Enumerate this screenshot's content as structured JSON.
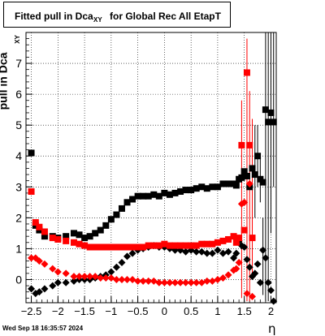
{
  "title": {
    "main": "Fitted pull in Dca",
    "subscript": "XY",
    "rest": "for Global Rec All EtapT"
  },
  "timestamp": "Wed Sep 18 16:35:57 2024",
  "axes": {
    "ylabel_main": "pull in Dca",
    "ylabel_sub": "XY",
    "xlabel": "η"
  },
  "colors": {
    "black": "#000000",
    "red": "#ff0000"
  },
  "chart_data": {
    "type": "scatter",
    "xlim": [
      -2.6,
      2.1
    ],
    "ylim": [
      -0.75,
      8.0
    ],
    "grid": true,
    "x_ticks": [
      -2.5,
      -2,
      -1.5,
      -1,
      -0.5,
      0,
      0.5,
      1,
      1.5,
      2
    ],
    "x_tick_labels": [
      "−2.5",
      "−2",
      "−1.5",
      "−1",
      "−0.5",
      "0",
      "0.5",
      "1",
      "1.5",
      "2"
    ],
    "y_ticks": [
      0,
      1,
      2,
      3,
      4,
      5,
      6,
      7
    ],
    "y_tick_labels": [
      "0",
      "1",
      "2",
      "3",
      "4",
      "5",
      "6",
      "7"
    ],
    "series": [
      {
        "marker": "square",
        "color": "#000000",
        "x": [
          -2.5,
          -2.42,
          -2.35,
          -2.25,
          -2.1,
          -2.0,
          -1.85,
          -1.7,
          -1.6,
          -1.5,
          -1.4,
          -1.3,
          -1.2,
          -1.1,
          -1.0,
          -0.9,
          -0.8,
          -0.7,
          -0.6,
          -0.5,
          -0.4,
          -0.3,
          -0.2,
          -0.1,
          0.0,
          0.1,
          0.2,
          0.3,
          0.4,
          0.5,
          0.6,
          0.7,
          0.8,
          0.9,
          1.0,
          1.1,
          1.2,
          1.3,
          1.35,
          1.4,
          1.45,
          1.5,
          1.55,
          1.6,
          1.65,
          1.7,
          1.75,
          1.8,
          1.85,
          1.9,
          1.95,
          2.0,
          2.05
        ],
        "y": [
          4.1,
          1.75,
          1.6,
          1.4,
          1.4,
          1.35,
          1.4,
          1.5,
          1.45,
          1.35,
          1.4,
          1.5,
          1.6,
          1.75,
          1.95,
          2.1,
          2.3,
          2.5,
          2.6,
          2.7,
          2.7,
          2.7,
          2.75,
          2.7,
          2.8,
          2.75,
          2.8,
          2.85,
          2.9,
          2.9,
          2.95,
          3.0,
          2.95,
          3.0,
          3.0,
          3.1,
          3.1,
          3.1,
          3.05,
          3.25,
          3.3,
          3.5,
          3.35,
          3.0,
          3.6,
          3.4,
          4.0,
          3.25,
          3.15,
          5.5,
          5.1,
          5.4,
          5.1
        ]
      },
      {
        "marker": "diamond",
        "color": "#000000",
        "x": [
          -2.5,
          -2.42,
          -2.35,
          -2.25,
          -2.1,
          -2.0,
          -1.85,
          -1.7,
          -1.6,
          -1.5,
          -1.4,
          -1.3,
          -1.2,
          -1.1,
          -1.0,
          -0.9,
          -0.8,
          -0.7,
          -0.6,
          -0.5,
          -0.4,
          -0.3,
          -0.2,
          -0.1,
          0.0,
          0.1,
          0.2,
          0.3,
          0.4,
          0.5,
          0.6,
          0.7,
          0.8,
          0.9,
          1.0,
          1.1,
          1.2,
          1.3,
          1.35,
          1.4,
          1.45,
          1.5,
          1.55,
          1.6,
          1.65,
          1.7,
          1.75,
          1.8,
          1.85,
          1.9,
          1.95,
          2.0,
          2.05
        ],
        "y": [
          -0.3,
          -0.45,
          -0.4,
          -0.3,
          -0.2,
          -0.1,
          -0.1,
          -0.05,
          0.0,
          0.0,
          0.0,
          0.05,
          0.1,
          0.15,
          0.25,
          0.4,
          0.55,
          0.75,
          0.85,
          0.95,
          1.0,
          1.05,
          1.1,
          1.05,
          1.05,
          1.0,
          0.95,
          0.95,
          0.9,
          0.95,
          0.9,
          0.9,
          0.85,
          0.85,
          0.95,
          0.85,
          0.9,
          0.7,
          0.85,
          1.25,
          1.1,
          1.05,
          0.65,
          0.4,
          0.1,
          0.2,
          0.5,
          -0.1,
          0.95,
          0.7,
          -0.1,
          -0.35,
          -0.7
        ]
      },
      {
        "marker": "square",
        "color": "#ff0000",
        "x": [
          -2.5,
          -2.42,
          -2.35,
          -2.25,
          -2.1,
          -2.0,
          -1.85,
          -1.7,
          -1.6,
          -1.5,
          -1.4,
          -1.3,
          -1.2,
          -1.1,
          -1.0,
          -0.9,
          -0.8,
          -0.7,
          -0.6,
          -0.5,
          -0.4,
          -0.3,
          -0.2,
          -0.1,
          0.0,
          0.1,
          0.2,
          0.3,
          0.4,
          0.5,
          0.6,
          0.7,
          0.8,
          0.9,
          1.0,
          1.1,
          1.2,
          1.3,
          1.35,
          1.4,
          1.45,
          1.5,
          1.55,
          1.6,
          1.65
        ],
        "y": [
          2.85,
          1.85,
          1.7,
          1.55,
          1.35,
          1.3,
          1.25,
          1.2,
          1.15,
          1.1,
          1.05,
          1.05,
          1.05,
          1.05,
          1.05,
          1.05,
          1.05,
          1.05,
          1.05,
          1.05,
          1.05,
          1.1,
          1.1,
          1.1,
          1.15,
          1.1,
          1.1,
          1.1,
          1.1,
          1.1,
          1.1,
          1.15,
          1.15,
          1.15,
          1.2,
          1.25,
          1.3,
          1.4,
          1.2,
          1.35,
          4.35,
          1.6,
          6.7,
          4.35,
          1.35
        ]
      },
      {
        "marker": "diamond",
        "color": "#ff0000",
        "x": [
          -2.5,
          -2.42,
          -2.35,
          -2.25,
          -2.1,
          -2.0,
          -1.85,
          -1.7,
          -1.6,
          -1.5,
          -1.4,
          -1.3,
          -1.2,
          -1.1,
          -1.0,
          -0.9,
          -0.8,
          -0.7,
          -0.6,
          -0.5,
          -0.4,
          -0.3,
          -0.2,
          -0.1,
          0.0,
          0.1,
          0.2,
          0.3,
          0.4,
          0.5,
          0.6,
          0.7,
          0.8,
          0.9,
          1.0,
          1.1,
          1.2,
          1.3,
          1.35,
          1.4,
          1.45,
          1.5,
          1.55,
          1.6,
          1.65
        ],
        "y": [
          0.7,
          0.7,
          0.6,
          0.5,
          0.35,
          0.25,
          0.2,
          0.1,
          0.1,
          0.1,
          0.1,
          0.1,
          0.05,
          0.05,
          0.05,
          0.0,
          0.0,
          0.0,
          0.0,
          -0.05,
          -0.05,
          -0.05,
          -0.05,
          -0.1,
          -0.1,
          -0.1,
          -0.1,
          -0.1,
          -0.1,
          -0.1,
          -0.1,
          -0.1,
          -0.05,
          -0.05,
          0.0,
          0.05,
          0.15,
          0.3,
          0.35,
          0.55,
          2.45,
          2.5,
          -0.45,
          3.1,
          -0.55
        ]
      }
    ],
    "error_bars": [
      {
        "x": 1.45,
        "y_low": -0.6,
        "y_high": 5.8,
        "color": "#ff0000"
      },
      {
        "x": 1.55,
        "y_low": -0.7,
        "y_high": 7.8,
        "color": "#ff0000"
      },
      {
        "x": 1.6,
        "y_low": -0.7,
        "y_high": 6.1,
        "color": "#ff0000"
      },
      {
        "x": 1.65,
        "y_low": 0.2,
        "y_high": 5.2,
        "color": "#ff0000"
      },
      {
        "x": 1.7,
        "y_low": 2.0,
        "y_high": 5.0,
        "color": "#000000"
      },
      {
        "x": 1.75,
        "y_low": 3.0,
        "y_high": 5.0,
        "color": "#000000"
      },
      {
        "x": 1.8,
        "y_low": 2.5,
        "y_high": 3.9,
        "color": "#000000"
      },
      {
        "x": 1.85,
        "y_low": -0.5,
        "y_high": 2.0,
        "color": "#000000"
      },
      {
        "x": 1.9,
        "y_low": -0.7,
        "y_high": 8.0,
        "color": "#000000"
      },
      {
        "x": 1.95,
        "y_low": -0.7,
        "y_high": 8.0,
        "color": "#000000"
      },
      {
        "x": 2.0,
        "y_low": 1.5,
        "y_high": 8.0,
        "color": "#000000"
      },
      {
        "x": 2.05,
        "y_low": 3.0,
        "y_high": 8.0,
        "color": "#000000"
      }
    ]
  }
}
